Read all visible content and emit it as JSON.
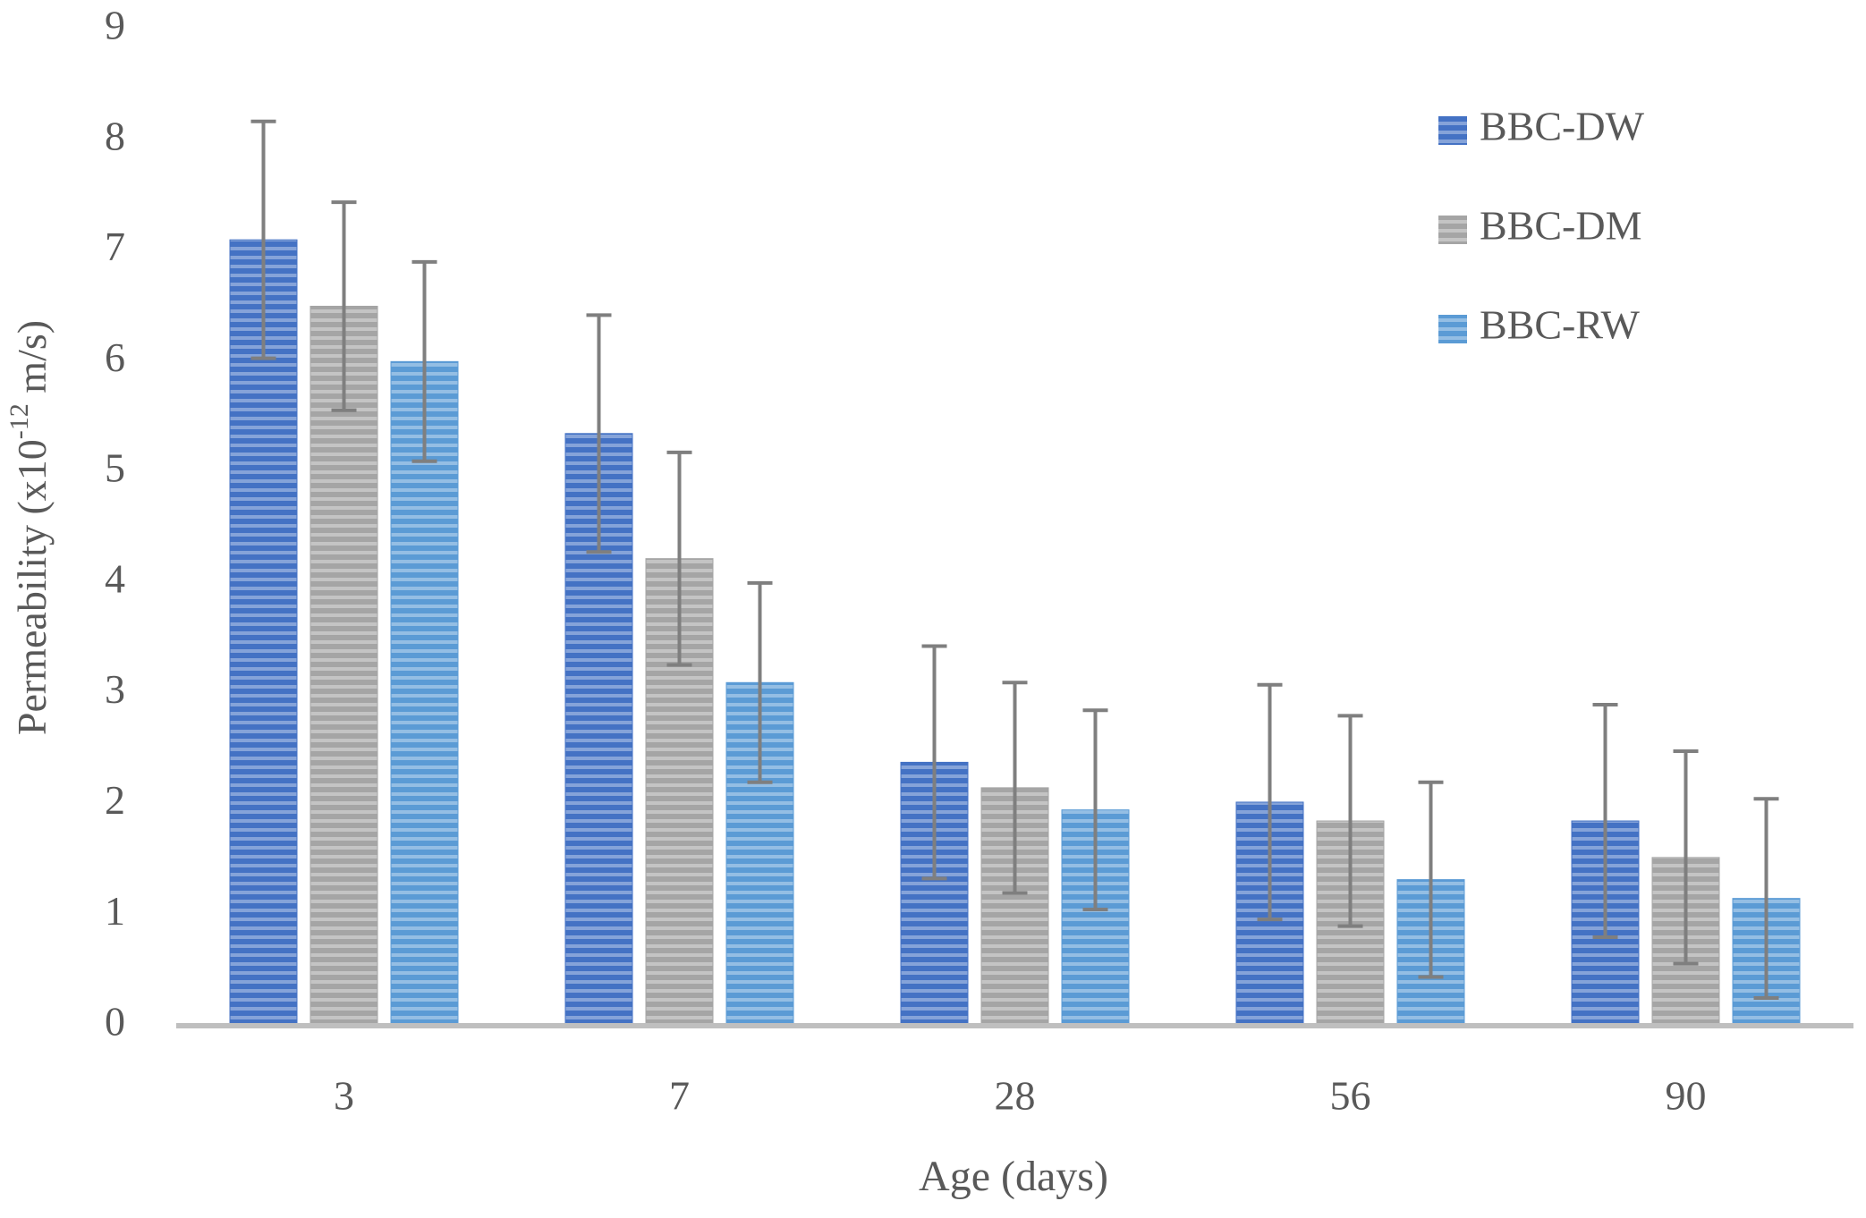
{
  "chart_data": {
    "type": "bar",
    "x_label": "Age (days)",
    "y_label": {
      "main": "Permeability (x10",
      "sup": "-12",
      "unit": " m/s)"
    },
    "categories": [
      "3",
      "7",
      "28",
      "56",
      "90"
    ],
    "series": [
      {
        "name": "BBC-DW",
        "color": "#4472c4",
        "values": [
          7.1,
          5.35,
          2.38,
          2.02,
          1.85
        ],
        "errors": [
          1.07,
          1.07,
          1.05,
          1.06,
          1.05
        ]
      },
      {
        "name": "BBC-DM",
        "color": "#a5a5a5",
        "values": [
          6.5,
          4.22,
          2.15,
          1.85,
          1.52
        ],
        "errors": [
          0.94,
          0.96,
          0.95,
          0.95,
          0.96
        ]
      },
      {
        "name": "BBC-RW",
        "color": "#5b9bd5",
        "values": [
          6.0,
          3.1,
          1.95,
          1.32,
          1.15
        ],
        "errors": [
          0.9,
          0.9,
          0.9,
          0.88,
          0.9
        ]
      }
    ],
    "ylim": [
      0,
      9
    ],
    "yticks": [
      0,
      1,
      2,
      3,
      4,
      5,
      6,
      7,
      8,
      9
    ],
    "error_color": "#7f7f7f",
    "legend": "top-right",
    "grid": false
  }
}
